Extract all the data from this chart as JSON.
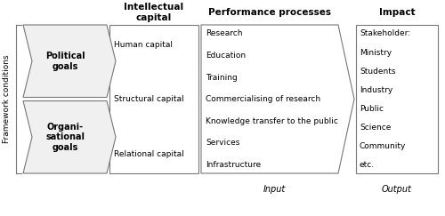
{
  "fig_width": 5.0,
  "fig_height": 2.43,
  "dpi": 100,
  "bg_color": "#ffffff",
  "col1_header": "Intellectual\ncapital",
  "col2_header": "Performance processes",
  "col3_header": "Impact",
  "side_label": "Framework conditions",
  "input_label": "Input",
  "output_label": "Output",
  "box1_label": "Political\ngoals",
  "box2_label": "Organi-\nsational\ngoals",
  "col1_items": [
    "Human capital",
    "Structural capital",
    "Relational capital"
  ],
  "col2_items": [
    "Research",
    "Education",
    "Training",
    "Commercialising of research",
    "Knowledge transfer to the public",
    "Services",
    "Infrastructure"
  ],
  "col3_items": [
    "Stakeholder:",
    "Ministry",
    "Students",
    "Industry",
    "Public",
    "Science",
    "Community",
    "etc."
  ],
  "border_color": "#777777",
  "text_color": "#000000",
  "header_fontsize": 7.5,
  "body_fontsize": 6.5,
  "side_fontsize": 6.5,
  "label_fontsize": 7
}
